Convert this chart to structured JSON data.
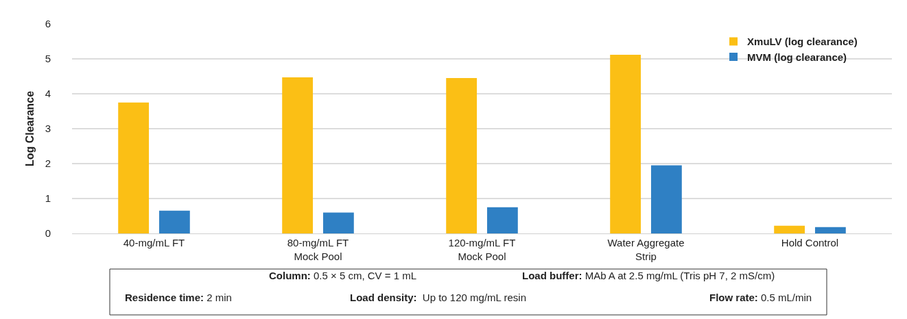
{
  "chart_data": {
    "type": "bar",
    "ylabel": "Log Clearance",
    "categories": [
      "40-mg/mL FT",
      "80-mg/mL FT\nMock Pool",
      "120-mg/mL FT\nMock Pool",
      "Water Aggregate\nStrip",
      "Hold Control"
    ],
    "series": [
      {
        "name": "XmuLV (log clearance)",
        "color": "#fbbf15",
        "values": [
          3.75,
          4.47,
          4.45,
          5.12,
          0.22
        ]
      },
      {
        "name": "MVM (log clearance)",
        "color": "#2f80c4",
        "values": [
          0.65,
          0.6,
          0.75,
          1.95,
          0.18
        ]
      }
    ],
    "ylim": [
      0,
      6
    ],
    "yticks": [
      0,
      1,
      2,
      3,
      4,
      5,
      6
    ],
    "grid": "y",
    "legend": "top right",
    "annotations": [
      "Column: 0.5 × 5 cm, CV = 1 mL",
      "Load buffer: MAb A at 2.5 mg/mL (Tris pH 7, 2 mS/cm)",
      "Residence time: 2 min",
      "Load density:  Up to 120 mg/mL resin",
      "Flow rate: 0.5 mL/min"
    ]
  }
}
